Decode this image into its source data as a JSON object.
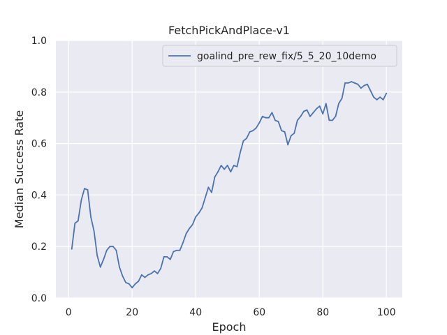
{
  "chart_data": {
    "type": "line",
    "title": "FetchPickAndPlace-v1",
    "xlabel": "Epoch",
    "ylabel": "Median Success Rate",
    "xlim": [
      -4,
      105
    ],
    "ylim": [
      0,
      1.0
    ],
    "xticks": [
      0,
      20,
      40,
      60,
      80,
      100
    ],
    "yticks": [
      0.0,
      0.2,
      0.4,
      0.6,
      0.8,
      1.0
    ],
    "ytick_labels": [
      "0.0",
      "0.2",
      "0.4",
      "0.6",
      "0.8",
      "1.0"
    ],
    "grid": true,
    "legend_position": "top-right",
    "background": "#eaeaf2",
    "series": [
      {
        "name": "goalind_pre_rew_fix/5_5_20_10demo",
        "color": "#4c72b0",
        "x": [
          1,
          2,
          3,
          4,
          5,
          6,
          7,
          8,
          9,
          10,
          11,
          12,
          13,
          14,
          15,
          16,
          17,
          18,
          19,
          20,
          21,
          22,
          23,
          24,
          25,
          26,
          27,
          28,
          29,
          30,
          31,
          32,
          33,
          34,
          35,
          36,
          37,
          38,
          39,
          40,
          41,
          42,
          43,
          44,
          45,
          46,
          47,
          48,
          49,
          50,
          51,
          52,
          53,
          54,
          55,
          56,
          57,
          58,
          59,
          60,
          61,
          62,
          63,
          64,
          65,
          66,
          67,
          68,
          69,
          70,
          71,
          72,
          73,
          74,
          75,
          76,
          77,
          78,
          79,
          80,
          81,
          82,
          83,
          84,
          85,
          86,
          87,
          88,
          89,
          90,
          91,
          92,
          93,
          94,
          95,
          96,
          97,
          98,
          99,
          100
        ],
        "values": [
          0.19,
          0.29,
          0.3,
          0.38,
          0.425,
          0.42,
          0.315,
          0.26,
          0.165,
          0.12,
          0.15,
          0.185,
          0.2,
          0.2,
          0.185,
          0.12,
          0.085,
          0.06,
          0.055,
          0.04,
          0.055,
          0.065,
          0.09,
          0.08,
          0.09,
          0.095,
          0.105,
          0.095,
          0.115,
          0.16,
          0.16,
          0.15,
          0.18,
          0.185,
          0.185,
          0.215,
          0.25,
          0.27,
          0.285,
          0.315,
          0.33,
          0.35,
          0.39,
          0.43,
          0.41,
          0.47,
          0.49,
          0.515,
          0.5,
          0.515,
          0.49,
          0.515,
          0.51,
          0.565,
          0.61,
          0.62,
          0.645,
          0.65,
          0.66,
          0.68,
          0.705,
          0.7,
          0.7,
          0.72,
          0.69,
          0.685,
          0.65,
          0.645,
          0.595,
          0.63,
          0.64,
          0.69,
          0.705,
          0.725,
          0.73,
          0.705,
          0.72,
          0.735,
          0.745,
          0.715,
          0.755,
          0.69,
          0.69,
          0.705,
          0.755,
          0.775,
          0.835,
          0.835,
          0.84,
          0.835,
          0.83,
          0.815,
          0.825,
          0.83,
          0.805,
          0.78,
          0.77,
          0.78,
          0.77,
          0.795
        ]
      }
    ]
  }
}
